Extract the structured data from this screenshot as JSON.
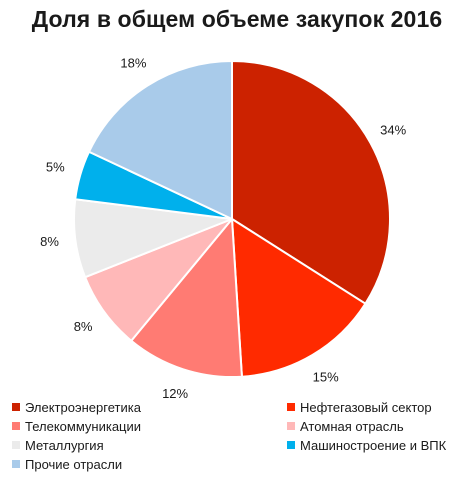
{
  "chart_data": {
    "type": "pie",
    "title": "Доля в общем объеме закупок 2016",
    "slices": [
      {
        "name": "Электроэнергетика",
        "value": 34,
        "label": "34%",
        "color": "#cc2200"
      },
      {
        "name": "Нефтегазовый сектор",
        "value": 15,
        "label": "15%",
        "color": "#ff2a00"
      },
      {
        "name": "Телекоммуникации",
        "value": 12,
        "label": "12%",
        "color": "#ff7b73"
      },
      {
        "name": "Атомная отрасль",
        "value": 8,
        "label": "8%",
        "color": "#ffb8b8"
      },
      {
        "name": "Металлургия",
        "value": 8,
        "label": "8%",
        "color": "#ebebeb"
      },
      {
        "name": "Машиностроение и ВПК",
        "value": 5,
        "label": "5%",
        "color": "#00b0ec"
      },
      {
        "name": "Прочие отрасли",
        "value": 18,
        "label": "18%",
        "color": "#a9cbea"
      }
    ],
    "legend_position": "bottom"
  }
}
